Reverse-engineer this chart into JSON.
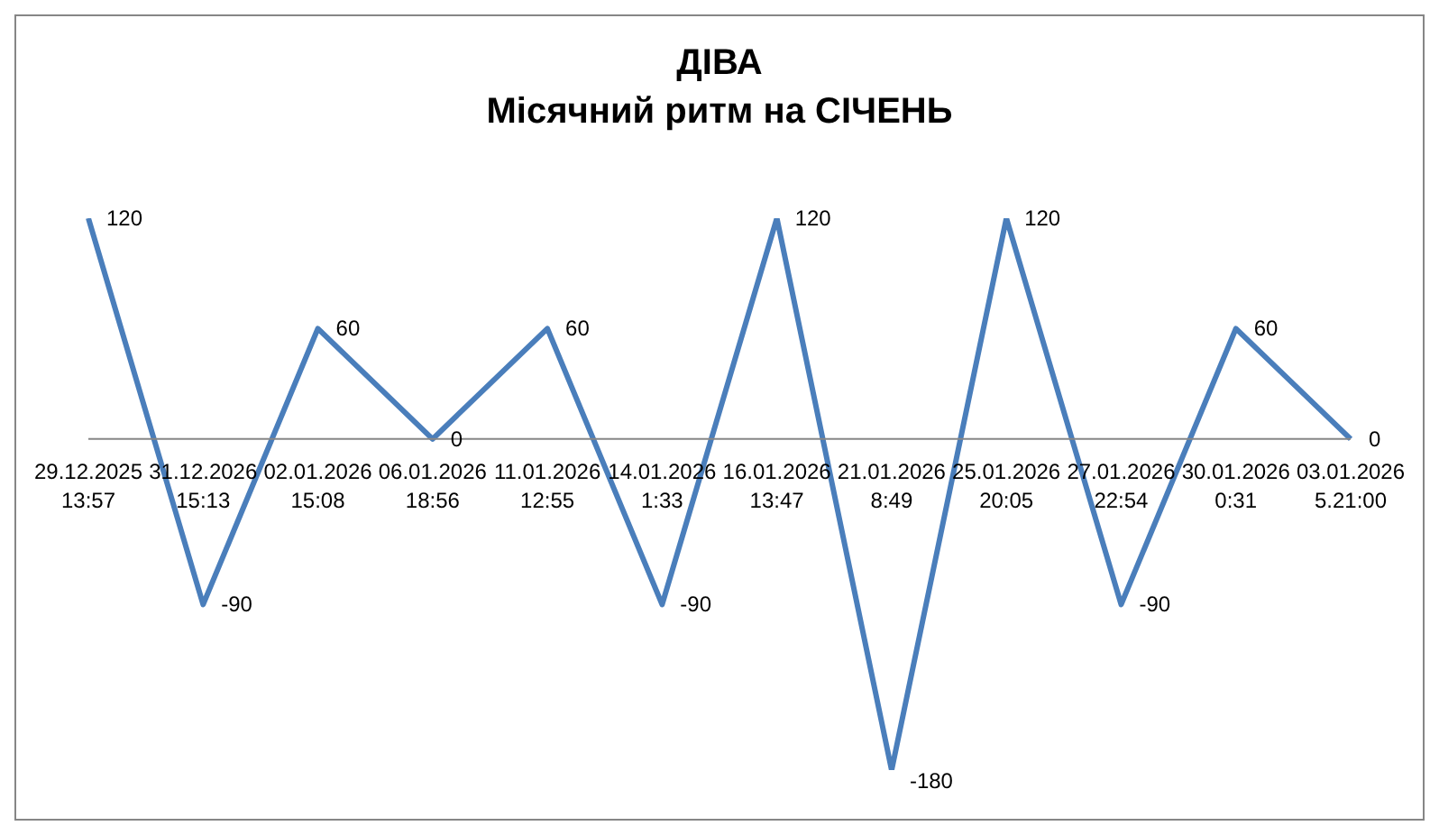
{
  "chart_data": {
    "type": "line",
    "title": "ДІВА",
    "subtitle": "Місячний ритм на СІЧЕНЬ",
    "categories": [
      "29.12.2025\n13:57",
      "31.12.2026\n15:13",
      "02.01.2026\n15:08",
      "06.01.2026\n18:56",
      "11.01.2026\n12:55",
      "14.01.2026\n1:33",
      "16.01.2026\n13:47",
      "21.01.2026\n8:49",
      "25.01.2026\n20:05",
      "27.01.2026\n22:54",
      "30.01.2026\n0:31",
      "03.01.2026\n5.21:00"
    ],
    "series": [
      {
        "color": "#4a7ebb",
        "values": [
          120,
          -90,
          60,
          0,
          60,
          -90,
          120,
          -180,
          120,
          -90,
          60,
          0
        ]
      }
    ],
    "data_labels": true,
    "grid": false,
    "legend": false,
    "marker": "none",
    "line_style": "solid"
  }
}
